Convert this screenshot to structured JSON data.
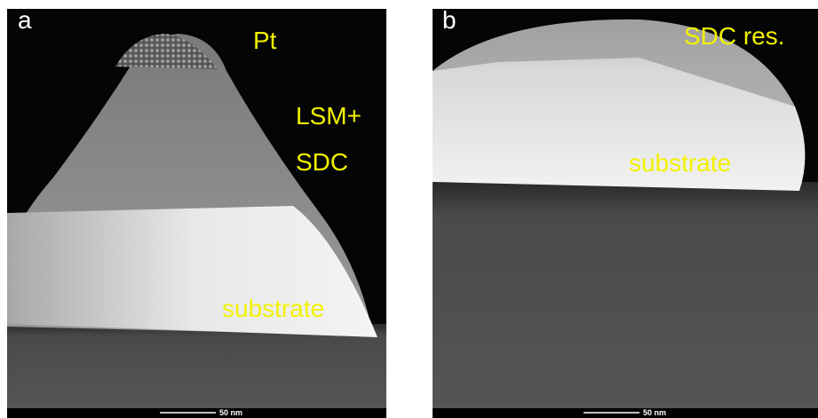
{
  "panels": [
    {
      "letter": "a",
      "labels": [
        "Pt",
        "LSM+",
        "SDC",
        "substrate"
      ],
      "scale_bar": "50 nm"
    },
    {
      "letter": "b",
      "labels": [
        "SDC res.",
        "substrate"
      ],
      "scale_bar": "50 nm"
    }
  ]
}
